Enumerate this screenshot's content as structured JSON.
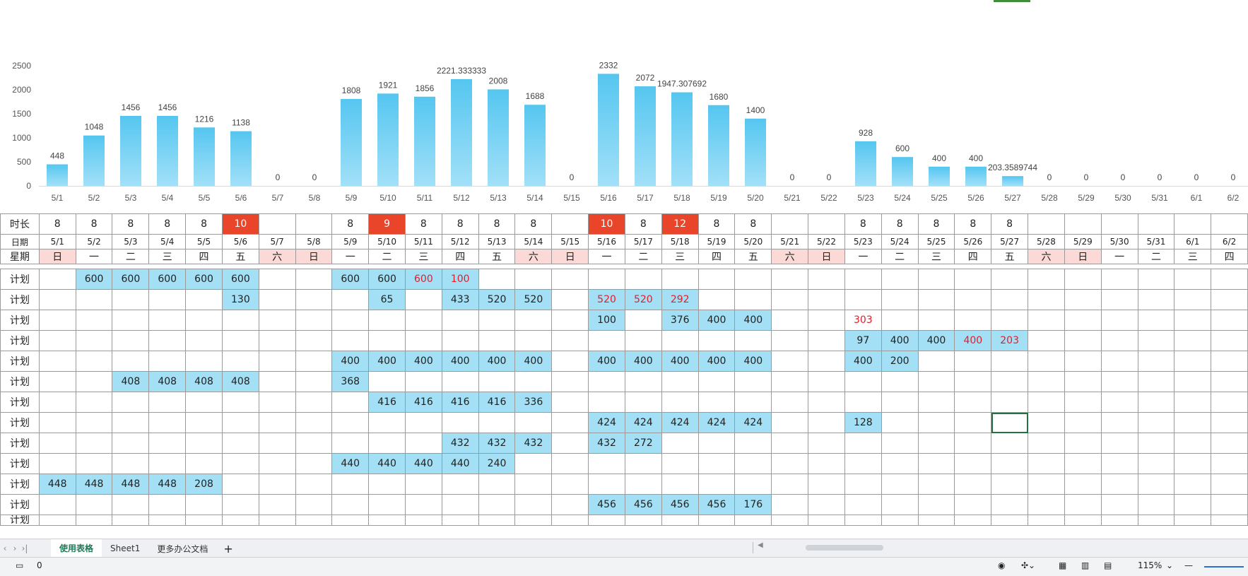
{
  "chart_data": {
    "type": "bar",
    "categories": [
      "5/1",
      "5/2",
      "5/3",
      "5/4",
      "5/5",
      "5/6",
      "5/7",
      "5/8",
      "5/9",
      "5/10",
      "5/11",
      "5/12",
      "5/13",
      "5/14",
      "5/15",
      "5/16",
      "5/17",
      "5/18",
      "5/19",
      "5/20",
      "5/21",
      "5/22",
      "5/23",
      "5/24",
      "5/25",
      "5/26",
      "5/27",
      "5/28",
      "5/29",
      "5/30",
      "5/31",
      "6/1",
      "6/2"
    ],
    "values": [
      448,
      1048,
      1456,
      1456,
      1216,
      1138,
      0,
      0,
      1808,
      1921,
      1856,
      2221.333333,
      2008,
      1688,
      0,
      2332,
      2072,
      1947.307692,
      1680,
      1400,
      0,
      0,
      928,
      600,
      400,
      400,
      203.3589744,
      0,
      0,
      0,
      0,
      0,
      0
    ],
    "value_labels": [
      "448",
      "1048",
      "1456",
      "1456",
      "1216",
      "1138",
      "0",
      "0",
      "1808",
      "1921",
      "1856",
      "2221.333333",
      "2008",
      "1688",
      "0",
      "2332",
      "2072",
      "1947.307692",
      "1680",
      "1400",
      "0",
      "0",
      "928",
      "600",
      "400",
      "400",
      "203.3589744",
      "0",
      "0",
      "0",
      "0",
      "0",
      "0"
    ],
    "y_ticks": [
      "0",
      "500",
      "1000",
      "1500",
      "2000",
      "2500"
    ],
    "ylim": [
      0,
      2500
    ],
    "bar_color": "#5bc8f0",
    "grid": false,
    "legend": "none"
  },
  "sheet": {
    "duration_label": "时长",
    "date_label": "日期",
    "weekday_label": "星期",
    "plan_label": "计划",
    "dates": [
      "5/1",
      "5/2",
      "5/3",
      "5/4",
      "5/5",
      "5/6",
      "5/7",
      "5/8",
      "5/9",
      "5/10",
      "5/11",
      "5/12",
      "5/13",
      "5/14",
      "5/15",
      "5/16",
      "5/17",
      "5/18",
      "5/19",
      "5/20",
      "5/21",
      "5/22",
      "5/23",
      "5/24",
      "5/25",
      "5/26",
      "5/27",
      "5/28",
      "5/29",
      "5/30",
      "5/31",
      "6/1",
      "6/2"
    ],
    "weekdays": [
      "日",
      "一",
      "二",
      "三",
      "四",
      "五",
      "六",
      "日",
      "一",
      "二",
      "三",
      "四",
      "五",
      "六",
      "日",
      "一",
      "二",
      "三",
      "四",
      "五",
      "六",
      "日",
      "一",
      "二",
      "三",
      "四",
      "五",
      "六",
      "日",
      "一",
      "二",
      "三",
      "四"
    ],
    "weekend_flags": [
      1,
      0,
      0,
      0,
      0,
      0,
      1,
      1,
      0,
      0,
      0,
      0,
      0,
      1,
      1,
      0,
      0,
      0,
      0,
      0,
      1,
      1,
      0,
      0,
      0,
      0,
      0,
      1,
      1,
      0,
      0,
      0,
      0
    ],
    "durations": [
      "8",
      "8",
      "8",
      "8",
      "8",
      "10",
      "",
      "",
      "8",
      "9",
      "8",
      "8",
      "8",
      "8",
      "",
      "10",
      "8",
      "12",
      "8",
      "8",
      "",
      "",
      "8",
      "8",
      "8",
      "8",
      "8",
      "",
      "",
      "",
      "",
      "",
      ""
    ],
    "duration_highlight": [
      0,
      0,
      0,
      0,
      0,
      1,
      0,
      0,
      0,
      1,
      0,
      0,
      0,
      0,
      0,
      1,
      0,
      1,
      0,
      0,
      0,
      0,
      0,
      0,
      0,
      0,
      0,
      0,
      0,
      0,
      0,
      0,
      0
    ],
    "plan_rows": [
      [
        [
          "",
          0,
          0
        ],
        [
          "600",
          1,
          0
        ],
        [
          "600",
          1,
          0
        ],
        [
          "600",
          1,
          0
        ],
        [
          "600",
          1,
          0
        ],
        [
          "600",
          1,
          0
        ],
        [
          "",
          0,
          0
        ],
        [
          "",
          0,
          0
        ],
        [
          "600",
          1,
          0
        ],
        [
          "600",
          1,
          0
        ],
        [
          "600",
          1,
          1
        ],
        [
          "100",
          1,
          1
        ]
      ],
      [
        [
          "",
          0,
          0
        ],
        [
          "",
          0,
          0
        ],
        [
          "",
          0,
          0
        ],
        [
          "",
          0,
          0
        ],
        [
          "",
          0,
          0
        ],
        [
          "130",
          1,
          0
        ],
        [
          "",
          0,
          0
        ],
        [
          "",
          0,
          0
        ],
        [
          "",
          0,
          0
        ],
        [
          "65",
          1,
          0
        ],
        [
          "",
          0,
          0
        ],
        [
          "433",
          1,
          0
        ],
        [
          "520",
          1,
          0
        ],
        [
          "520",
          1,
          0
        ],
        [
          "",
          0,
          0
        ],
        [
          "520",
          1,
          1
        ],
        [
          "520",
          1,
          1
        ],
        [
          "292",
          1,
          1
        ]
      ],
      [
        [
          "",
          0,
          0
        ],
        [
          "",
          0,
          0
        ],
        [
          "",
          0,
          0
        ],
        [
          "",
          0,
          0
        ],
        [
          "",
          0,
          0
        ],
        [
          "",
          0,
          0
        ],
        [
          "",
          0,
          0
        ],
        [
          "",
          0,
          0
        ],
        [
          "",
          0,
          0
        ],
        [
          "",
          0,
          0
        ],
        [
          "",
          0,
          0
        ],
        [
          "",
          0,
          0
        ],
        [
          "",
          0,
          0
        ],
        [
          "",
          0,
          0
        ],
        [
          "",
          0,
          0
        ],
        [
          "100",
          1,
          0
        ],
        [
          "",
          0,
          0
        ],
        [
          "376",
          1,
          0
        ],
        [
          "400",
          1,
          0
        ],
        [
          "400",
          1,
          0
        ],
        [
          "",
          0,
          0
        ],
        [
          "",
          0,
          0
        ],
        [
          "303",
          0,
          1
        ]
      ],
      [
        [
          "",
          0,
          0
        ],
        [
          "",
          0,
          0
        ],
        [
          "",
          0,
          0
        ],
        [
          "",
          0,
          0
        ],
        [
          "",
          0,
          0
        ],
        [
          "",
          0,
          0
        ],
        [
          "",
          0,
          0
        ],
        [
          "",
          0,
          0
        ],
        [
          "",
          0,
          0
        ],
        [
          "",
          0,
          0
        ],
        [
          "",
          0,
          0
        ],
        [
          "",
          0,
          0
        ],
        [
          "",
          0,
          0
        ],
        [
          "",
          0,
          0
        ],
        [
          "",
          0,
          0
        ],
        [
          "",
          0,
          0
        ],
        [
          "",
          0,
          0
        ],
        [
          "",
          0,
          0
        ],
        [
          "",
          0,
          0
        ],
        [
          "",
          0,
          0
        ],
        [
          "",
          0,
          0
        ],
        [
          "",
          0,
          0
        ],
        [
          "97",
          1,
          0
        ],
        [
          "400",
          1,
          0
        ],
        [
          "400",
          1,
          0
        ],
        [
          "400",
          1,
          1
        ],
        [
          "203",
          1,
          1
        ]
      ],
      [
        [
          "",
          0,
          0
        ],
        [
          "",
          0,
          0
        ],
        [
          "",
          0,
          0
        ],
        [
          "",
          0,
          0
        ],
        [
          "",
          0,
          0
        ],
        [
          "",
          0,
          0
        ],
        [
          "",
          0,
          0
        ],
        [
          "",
          0,
          0
        ],
        [
          "400",
          1,
          0
        ],
        [
          "400",
          1,
          0
        ],
        [
          "400",
          1,
          0
        ],
        [
          "400",
          1,
          0
        ],
        [
          "400",
          1,
          0
        ],
        [
          "400",
          1,
          0
        ],
        [
          "",
          0,
          0
        ],
        [
          "400",
          1,
          0
        ],
        [
          "400",
          1,
          0
        ],
        [
          "400",
          1,
          0
        ],
        [
          "400",
          1,
          0
        ],
        [
          "400",
          1,
          0
        ],
        [
          "",
          0,
          0
        ],
        [
          "",
          0,
          0
        ],
        [
          "400",
          1,
          0
        ],
        [
          "200",
          1,
          0
        ]
      ],
      [
        [
          "",
          0,
          0
        ],
        [
          "",
          0,
          0
        ],
        [
          "408",
          1,
          0
        ],
        [
          "408",
          1,
          0
        ],
        [
          "408",
          1,
          0
        ],
        [
          "408",
          1,
          0
        ],
        [
          "",
          0,
          0
        ],
        [
          "",
          0,
          0
        ],
        [
          "368",
          1,
          0
        ]
      ],
      [
        [
          "",
          0,
          0
        ],
        [
          "",
          0,
          0
        ],
        [
          "",
          0,
          0
        ],
        [
          "",
          0,
          0
        ],
        [
          "",
          0,
          0
        ],
        [
          "",
          0,
          0
        ],
        [
          "",
          0,
          0
        ],
        [
          "",
          0,
          0
        ],
        [
          "",
          0,
          0
        ],
        [
          "416",
          1,
          0
        ],
        [
          "416",
          1,
          0
        ],
        [
          "416",
          1,
          0
        ],
        [
          "416",
          1,
          0
        ],
        [
          "336",
          1,
          0
        ]
      ],
      [
        [
          "",
          0,
          0
        ],
        [
          "",
          0,
          0
        ],
        [
          "",
          0,
          0
        ],
        [
          "",
          0,
          0
        ],
        [
          "",
          0,
          0
        ],
        [
          "",
          0,
          0
        ],
        [
          "",
          0,
          0
        ],
        [
          "",
          0,
          0
        ],
        [
          "",
          0,
          0
        ],
        [
          "",
          0,
          0
        ],
        [
          "",
          0,
          0
        ],
        [
          "",
          0,
          0
        ],
        [
          "",
          0,
          0
        ],
        [
          "",
          0,
          0
        ],
        [
          "",
          0,
          0
        ],
        [
          "424",
          1,
          0
        ],
        [
          "424",
          1,
          0
        ],
        [
          "424",
          1,
          0
        ],
        [
          "424",
          1,
          0
        ],
        [
          "424",
          1,
          0
        ],
        [
          "",
          0,
          0
        ],
        [
          "",
          0,
          0
        ],
        [
          "128",
          1,
          0
        ]
      ],
      [
        [
          "",
          0,
          0
        ],
        [
          "",
          0,
          0
        ],
        [
          "",
          0,
          0
        ],
        [
          "",
          0,
          0
        ],
        [
          "",
          0,
          0
        ],
        [
          "",
          0,
          0
        ],
        [
          "",
          0,
          0
        ],
        [
          "",
          0,
          0
        ],
        [
          "",
          0,
          0
        ],
        [
          "",
          0,
          0
        ],
        [
          "",
          0,
          0
        ],
        [
          "432",
          1,
          0
        ],
        [
          "432",
          1,
          0
        ],
        [
          "432",
          1,
          0
        ],
        [
          "",
          0,
          0
        ],
        [
          "432",
          1,
          0
        ],
        [
          "272",
          1,
          0
        ]
      ],
      [
        [
          "",
          0,
          0
        ],
        [
          "",
          0,
          0
        ],
        [
          "",
          0,
          0
        ],
        [
          "",
          0,
          0
        ],
        [
          "",
          0,
          0
        ],
        [
          "",
          0,
          0
        ],
        [
          "",
          0,
          0
        ],
        [
          "",
          0,
          0
        ],
        [
          "440",
          1,
          0
        ],
        [
          "440",
          1,
          0
        ],
        [
          "440",
          1,
          0
        ],
        [
          "440",
          1,
          0
        ],
        [
          "240",
          1,
          0
        ]
      ],
      [
        [
          "448",
          1,
          0
        ],
        [
          "448",
          1,
          0
        ],
        [
          "448",
          1,
          0
        ],
        [
          "448",
          1,
          0
        ],
        [
          "208",
          1,
          0
        ]
      ],
      [
        [
          "",
          0,
          0
        ],
        [
          "",
          0,
          0
        ],
        [
          "",
          0,
          0
        ],
        [
          "",
          0,
          0
        ],
        [
          "",
          0,
          0
        ],
        [
          "",
          0,
          0
        ],
        [
          "",
          0,
          0
        ],
        [
          "",
          0,
          0
        ],
        [
          "",
          0,
          0
        ],
        [
          "",
          0,
          0
        ],
        [
          "",
          0,
          0
        ],
        [
          "",
          0,
          0
        ],
        [
          "",
          0,
          0
        ],
        [
          "",
          0,
          0
        ],
        [
          "",
          0,
          0
        ],
        [
          "456",
          1,
          0
        ],
        [
          "456",
          1,
          0
        ],
        [
          "456",
          1,
          0
        ],
        [
          "456",
          1,
          0
        ],
        [
          "176",
          1,
          0
        ]
      ]
    ],
    "partial_row_label": "计划"
  },
  "tabs": {
    "nav": [
      "‹",
      "›",
      "›|"
    ],
    "items": [
      "使用表格",
      "Sheet1",
      "更多办公文档"
    ],
    "active_index": 0,
    "add": "+"
  },
  "status": {
    "left_value": "0",
    "zoom": "115%",
    "zoom_arrow": "⌄",
    "minus": "—",
    "eye_icon": "eye-icon",
    "colors": {
      "selected": "#217346",
      "highlight": "#e8452a",
      "weekend": "#fbd9d7",
      "plan": "#a3dff5"
    }
  }
}
